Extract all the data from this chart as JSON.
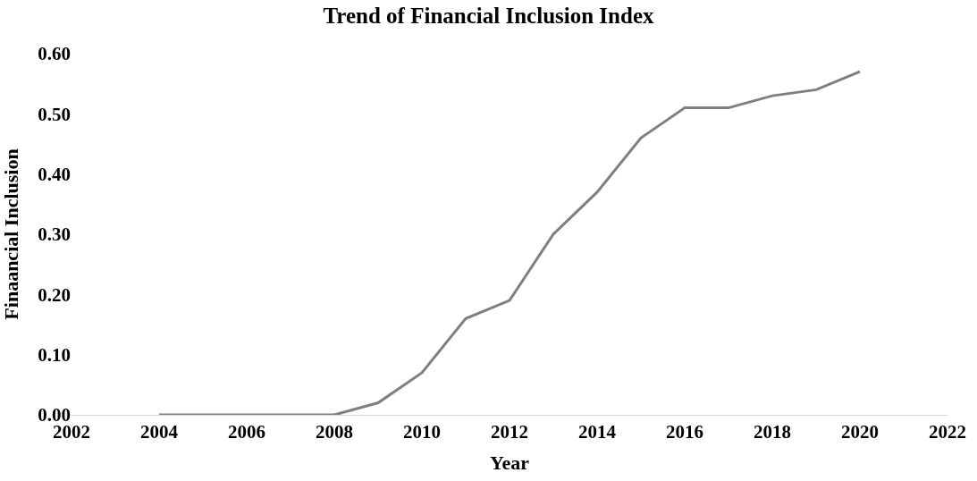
{
  "chart_data": {
    "type": "line",
    "title": "Trend of Financial Inclusion Index",
    "xlabel": "Year",
    "ylabel": "Finaancial Inclusion",
    "x": [
      2004,
      2005,
      2006,
      2007,
      2008,
      2009,
      2010,
      2011,
      2012,
      2013,
      2014,
      2015,
      2016,
      2017,
      2018,
      2019,
      2020
    ],
    "series": [
      {
        "color": "#7f7f7f",
        "values": [
          0,
          0,
          0,
          0,
          0,
          0.02,
          0.07,
          0.16,
          0.19,
          0.3,
          0.37,
          0.46,
          0.51,
          0.51,
          0.53,
          0.54,
          0.57
        ]
      }
    ],
    "xlim": [
      2002,
      2022
    ],
    "xticks": [
      2002,
      2004,
      2006,
      2008,
      2010,
      2012,
      2014,
      2016,
      2018,
      2020,
      2022
    ],
    "ylim": [
      0,
      0.6
    ],
    "yticks": [
      {
        "value": 0,
        "label": "0.00"
      },
      {
        "value": 0.1,
        "label": "0.10"
      },
      {
        "value": 0.2,
        "label": "0.20"
      },
      {
        "value": 0.3,
        "label": "0.30"
      },
      {
        "value": 0.4,
        "label": "0.40"
      },
      {
        "value": 0.5,
        "label": "0.50"
      },
      {
        "value": 0.6,
        "label": "0.60"
      }
    ],
    "marker": "none",
    "line_style": "solid"
  }
}
